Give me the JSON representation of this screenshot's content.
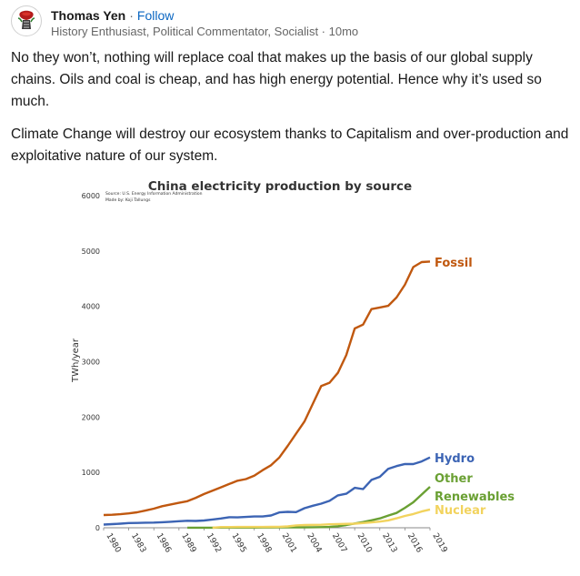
{
  "post": {
    "author": "Thomas Yen",
    "follow_label": "Follow",
    "separator": "·",
    "headline": "History Enthusiast, Political Commentator, Socialist · 10mo",
    "paragraphs": [
      "No they won’t, nothing will replace coal that makes up the basis of our global supply chains. Oils and coal is cheap, and has high energy potential. Hence why it’s used so much.",
      "Climate Change will destroy our ecosystem thanks to Capitalism and over-production and exploitative nature of our system."
    ]
  },
  "chart_data": {
    "type": "line",
    "title": "China electricity production by source",
    "source_note": [
      "Source: U.S. Energy Information Administration",
      "Made by: Koji Tallungs"
    ],
    "ylabel": "TWh/year",
    "ylim": [
      0,
      6000
    ],
    "yticks": [
      0,
      1000,
      2000,
      3000,
      4000,
      5000,
      6000
    ],
    "xlim": [
      1980,
      2019
    ],
    "xticks": [
      1980,
      1983,
      1986,
      1989,
      1992,
      1995,
      1998,
      2001,
      2004,
      2007,
      2010,
      2013,
      2016,
      2019
    ],
    "series": [
      {
        "name": "Fossil",
        "color": "#c0580f",
        "x": [
          1980,
          1981,
          1982,
          1983,
          1984,
          1985,
          1986,
          1987,
          1988,
          1989,
          1990,
          1991,
          1992,
          1993,
          1994,
          1995,
          1996,
          1997,
          1998,
          1999,
          2000,
          2001,
          2002,
          2003,
          2004,
          2005,
          2006,
          2007,
          2008,
          2009,
          2010,
          2011,
          2012,
          2013,
          2014,
          2015,
          2016,
          2017,
          2018,
          2019
        ],
        "y": [
          230,
          235,
          245,
          260,
          280,
          310,
          345,
          390,
          420,
          450,
          480,
          540,
          610,
          670,
          730,
          790,
          850,
          880,
          940,
          1040,
          1130,
          1270,
          1480,
          1700,
          1920,
          2240,
          2560,
          2620,
          2800,
          3120,
          3600,
          3670,
          3950,
          3980,
          4010,
          4160,
          4390,
          4710,
          4800,
          4810
        ]
      },
      {
        "name": "Hydro",
        "color": "#3c64b4",
        "x": [
          1980,
          1981,
          1982,
          1983,
          1984,
          1985,
          1986,
          1987,
          1988,
          1989,
          1990,
          1991,
          1992,
          1993,
          1994,
          1995,
          1996,
          1997,
          1998,
          1999,
          2000,
          2001,
          2002,
          2003,
          2004,
          2005,
          2006,
          2007,
          2008,
          2009,
          2010,
          2011,
          2012,
          2013,
          2014,
          2015,
          2016,
          2017,
          2018,
          2019
        ],
        "y": [
          58,
          65,
          74,
          86,
          87,
          92,
          94,
          100,
          109,
          118,
          126,
          124,
          131,
          150,
          167,
          190,
          188,
          195,
          204,
          204,
          222,
          277,
          288,
          283,
          353,
          397,
          435,
          486,
          585,
          615,
          722,
          698,
          864,
          920,
          1064,
          1114,
          1153,
          1150,
          1198,
          1270
        ]
      },
      {
        "name": "Other\nRenewables",
        "color": "#6aa033",
        "x": [
          1990,
          1991,
          1992,
          1993,
          1994,
          1995,
          1996,
          1997,
          1998,
          1999,
          2000,
          2001,
          2002,
          2003,
          2004,
          2005,
          2006,
          2007,
          2008,
          2009,
          2010,
          2011,
          2012,
          2013,
          2014,
          2015,
          2016,
          2017,
          2018,
          2019
        ],
        "y": [
          2,
          2,
          2,
          2,
          3,
          3,
          3,
          4,
          4,
          5,
          5,
          6,
          7,
          8,
          9,
          10,
          12,
          14,
          28,
          50,
          77,
          104,
          135,
          170,
          220,
          268,
          360,
          460,
          600,
          740
        ]
      },
      {
        "name": "Nuclear",
        "color": "#f2d35e",
        "x": [
          1993,
          1994,
          1995,
          1996,
          1997,
          1998,
          1999,
          2000,
          2001,
          2002,
          2003,
          2004,
          2005,
          2006,
          2007,
          2008,
          2009,
          2010,
          2011,
          2012,
          2013,
          2014,
          2015,
          2016,
          2017,
          2018,
          2019
        ],
        "y": [
          2,
          13,
          13,
          14,
          14,
          14,
          15,
          17,
          18,
          25,
          43,
          50,
          53,
          55,
          62,
          68,
          70,
          74,
          86,
          97,
          112,
          133,
          171,
          213,
          248,
          295,
          330
        ]
      }
    ]
  }
}
